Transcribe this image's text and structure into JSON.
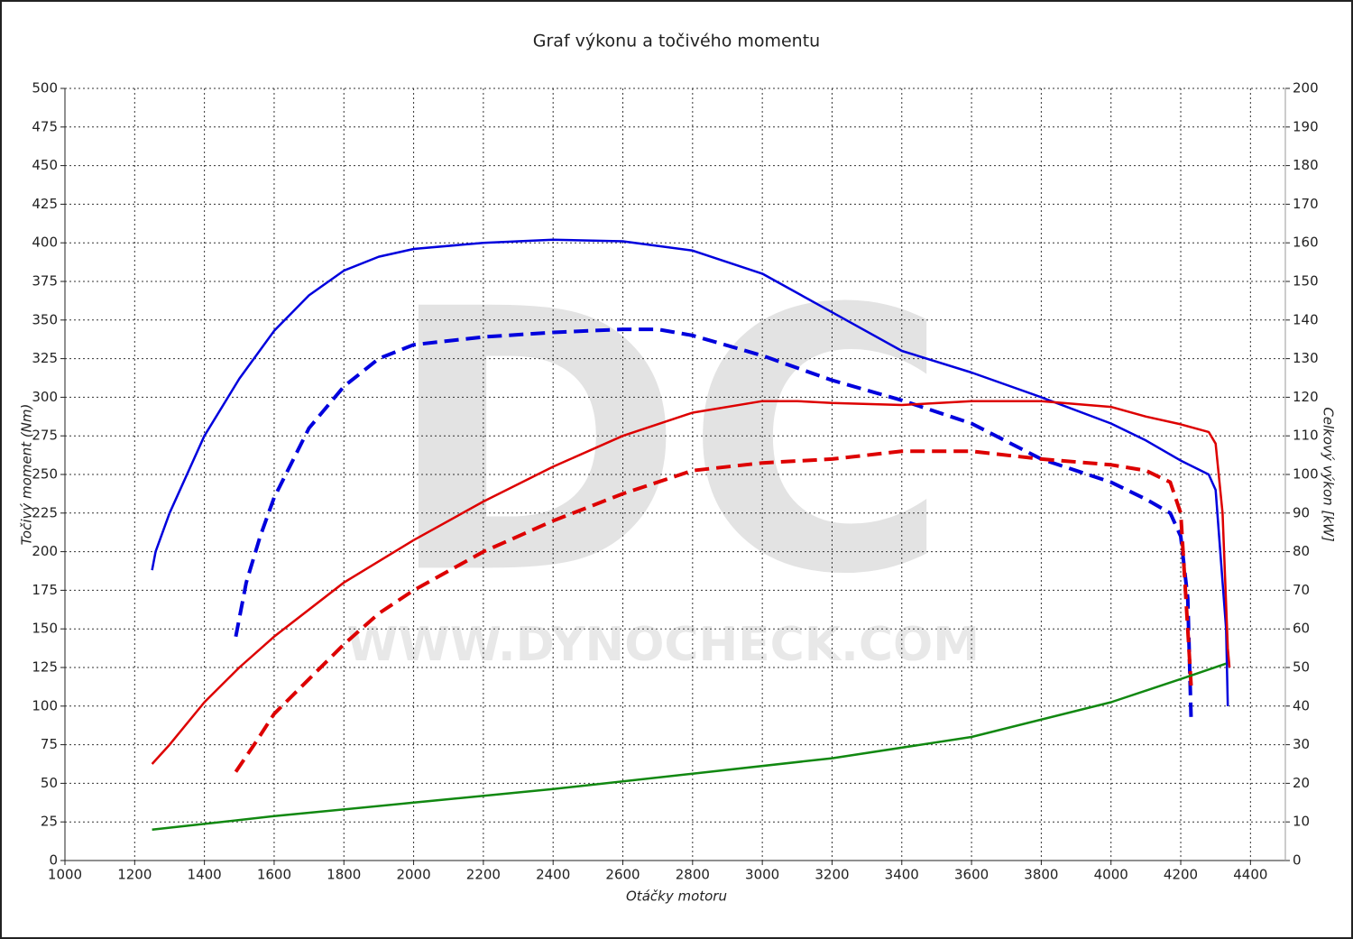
{
  "chart_data": {
    "type": "line",
    "title": "Graf výkonu a točivého momentu",
    "x_label": "Otáčky motoru",
    "y_label": "Točivý moment (Nm)",
    "y2_label": "Celkový výkon [kW]",
    "watermark": [
      "DC",
      "WWW.DYNOCHECK.COM"
    ],
    "xlim": [
      1000,
      4500
    ],
    "xticks": [
      1000,
      1200,
      1400,
      1600,
      1800,
      2000,
      2200,
      2400,
      2600,
      2800,
      3000,
      3200,
      3400,
      3600,
      3800,
      4000,
      4200,
      4400
    ],
    "ylim": [
      0,
      500
    ],
    "yticks": [
      0,
      25,
      50,
      75,
      100,
      125,
      150,
      175,
      200,
      225,
      250,
      275,
      300,
      325,
      350,
      375,
      400,
      425,
      450,
      475,
      500
    ],
    "y2lim": [
      0,
      200
    ],
    "y2ticks": [
      0,
      10,
      20,
      30,
      40,
      50,
      60,
      70,
      80,
      90,
      100,
      110,
      120,
      130,
      140,
      150,
      160,
      170,
      180,
      190,
      200
    ],
    "grid": true,
    "series": [
      {
        "color": "#0000dd",
        "dashed": false,
        "axis": "y",
        "x": [
          1250,
          1260,
          1300,
          1400,
          1500,
          1600,
          1700,
          1800,
          1900,
          2000,
          2200,
          2400,
          2600,
          2800,
          3000,
          3200,
          3400,
          3600,
          3800,
          4000,
          4100,
          4200,
          4280,
          4300,
          4330,
          4335
        ],
        "values": [
          188,
          200,
          225,
          275,
          312,
          343,
          366,
          382,
          391,
          396,
          400,
          402,
          401,
          395,
          380,
          355,
          330,
          316,
          300,
          283,
          272,
          259,
          250,
          240,
          150,
          100
        ]
      },
      {
        "color": "#0000dd",
        "dashed": true,
        "axis": "y",
        "x": [
          1490,
          1520,
          1560,
          1600,
          1700,
          1800,
          1900,
          2000,
          2200,
          2400,
          2600,
          2700,
          2800,
          3000,
          3200,
          3400,
          3600,
          3800,
          4000,
          4100,
          4170,
          4200,
          4220,
          4230
        ],
        "values": [
          145,
          180,
          210,
          235,
          280,
          307,
          325,
          334,
          339,
          342,
          344,
          344,
          340,
          327,
          311,
          298,
          283,
          260,
          245,
          234,
          225,
          210,
          170,
          90
        ]
      },
      {
        "color": "#dd0000",
        "dashed": false,
        "axis": "y2",
        "x": [
          1250,
          1270,
          1300,
          1400,
          1500,
          1600,
          1800,
          2000,
          2200,
          2400,
          2600,
          2800,
          3000,
          3100,
          3200,
          3400,
          3600,
          3800,
          4000,
          4100,
          4200,
          4280,
          4300,
          4320,
          4335,
          4340
        ],
        "values": [
          25,
          27,
          30,
          41,
          50,
          58,
          72,
          83,
          93,
          102,
          110,
          116,
          119,
          119,
          118.5,
          118,
          119,
          119,
          117.5,
          115,
          113,
          111,
          108,
          90,
          55,
          50
        ]
      },
      {
        "color": "#dd0000",
        "dashed": true,
        "axis": "y2",
        "x": [
          1490,
          1550,
          1600,
          1700,
          1800,
          1900,
          2000,
          2200,
          2400,
          2600,
          2800,
          3000,
          3200,
          3400,
          3600,
          3800,
          4000,
          4100,
          4170,
          4200,
          4220,
          4230
        ],
        "values": [
          23,
          31,
          38,
          47,
          56,
          64,
          70,
          80,
          88,
          95,
          101,
          103,
          104,
          106,
          106,
          104,
          102.5,
          101,
          98,
          90,
          60,
          45
        ]
      },
      {
        "color": "#118811",
        "dashed": false,
        "axis": "y2",
        "x": [
          1250,
          1600,
          2000,
          2400,
          2800,
          3200,
          3600,
          4000,
          4200,
          4330
        ],
        "values": [
          8,
          11.5,
          15,
          18.5,
          22.5,
          26.5,
          32,
          41,
          47,
          51
        ]
      }
    ]
  }
}
